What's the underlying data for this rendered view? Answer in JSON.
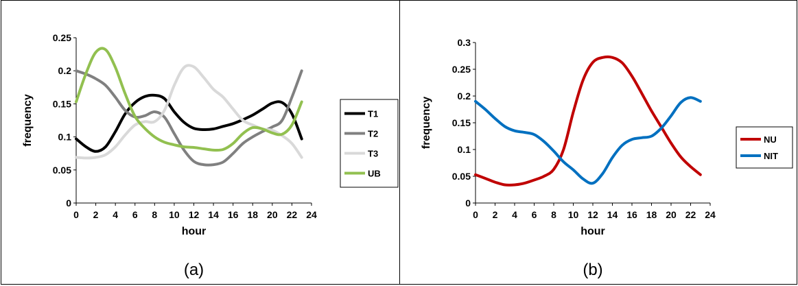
{
  "chart_data": [
    {
      "type": "line",
      "caption": "(a)",
      "xlabel": "hour",
      "ylabel": "frequency",
      "xlim": [
        0,
        24
      ],
      "ylim": [
        0,
        0.25
      ],
      "xticks": [
        "0",
        "2",
        "4",
        "6",
        "8",
        "10",
        "12",
        "14",
        "16",
        "18",
        "20",
        "22",
        "24"
      ],
      "yticks": [
        "0",
        "0.05",
        "0.1",
        "0.15",
        "0.2",
        "0.25"
      ],
      "grid": false,
      "legend_position": "right",
      "x": [
        0,
        1,
        2,
        3,
        4,
        5,
        6,
        7,
        8,
        9,
        10,
        11,
        12,
        13,
        14,
        15,
        16,
        17,
        18,
        19,
        20,
        21,
        22,
        23
      ],
      "series": [
        {
          "name": "T1",
          "color": "#000000",
          "values": [
            0.097,
            0.085,
            0.078,
            0.085,
            0.108,
            0.135,
            0.152,
            0.161,
            0.163,
            0.158,
            0.138,
            0.122,
            0.113,
            0.111,
            0.112,
            0.116,
            0.12,
            0.126,
            0.133,
            0.142,
            0.151,
            0.152,
            0.135,
            0.097
          ]
        },
        {
          "name": "T2",
          "color": "#808080",
          "values": [
            0.2,
            0.195,
            0.188,
            0.178,
            0.16,
            0.14,
            0.13,
            0.132,
            0.138,
            0.13,
            0.105,
            0.08,
            0.063,
            0.058,
            0.058,
            0.062,
            0.075,
            0.09,
            0.1,
            0.108,
            0.115,
            0.125,
            0.16,
            0.2
          ]
        },
        {
          "name": "T3",
          "color": "#d9d9d9",
          "values": [
            0.069,
            0.068,
            0.069,
            0.073,
            0.085,
            0.103,
            0.118,
            0.123,
            0.123,
            0.14,
            0.178,
            0.205,
            0.206,
            0.19,
            0.172,
            0.16,
            0.142,
            0.125,
            0.118,
            0.112,
            0.11,
            0.102,
            0.09,
            0.069
          ]
        },
        {
          "name": "UB",
          "color": "#92c050",
          "values": [
            0.153,
            0.196,
            0.228,
            0.232,
            0.205,
            0.165,
            0.131,
            0.113,
            0.1,
            0.092,
            0.088,
            0.085,
            0.084,
            0.082,
            0.08,
            0.081,
            0.09,
            0.105,
            0.114,
            0.112,
            0.106,
            0.104,
            0.118,
            0.153
          ]
        }
      ]
    },
    {
      "type": "line",
      "caption": "(b)",
      "xlabel": "hour",
      "ylabel": "frequency",
      "xlim": [
        0,
        24
      ],
      "ylim": [
        0,
        0.3
      ],
      "xticks": [
        "0",
        "2",
        "4",
        "6",
        "8",
        "10",
        "12",
        "14",
        "16",
        "18",
        "20",
        "22",
        "24"
      ],
      "yticks": [
        "0",
        "0.05",
        "0.1",
        "0.15",
        "0.2",
        "0.25",
        "0.3"
      ],
      "grid": false,
      "legend_position": "right",
      "x": [
        0,
        1,
        2,
        3,
        4,
        5,
        6,
        7,
        8,
        9,
        10,
        11,
        12,
        13,
        14,
        15,
        16,
        17,
        18,
        19,
        20,
        21,
        22,
        23
      ],
      "series": [
        {
          "name": "NU",
          "color": "#c00000",
          "values": [
            0.053,
            0.046,
            0.039,
            0.034,
            0.034,
            0.037,
            0.043,
            0.05,
            0.063,
            0.1,
            0.17,
            0.23,
            0.263,
            0.272,
            0.272,
            0.262,
            0.237,
            0.205,
            0.172,
            0.142,
            0.112,
            0.086,
            0.068,
            0.053
          ]
        },
        {
          "name": "NIT",
          "color": "#0070c0",
          "values": [
            0.19,
            0.175,
            0.158,
            0.143,
            0.135,
            0.132,
            0.128,
            0.115,
            0.097,
            0.077,
            0.062,
            0.045,
            0.037,
            0.055,
            0.085,
            0.108,
            0.119,
            0.122,
            0.125,
            0.14,
            0.163,
            0.188,
            0.197,
            0.19
          ]
        }
      ]
    }
  ]
}
